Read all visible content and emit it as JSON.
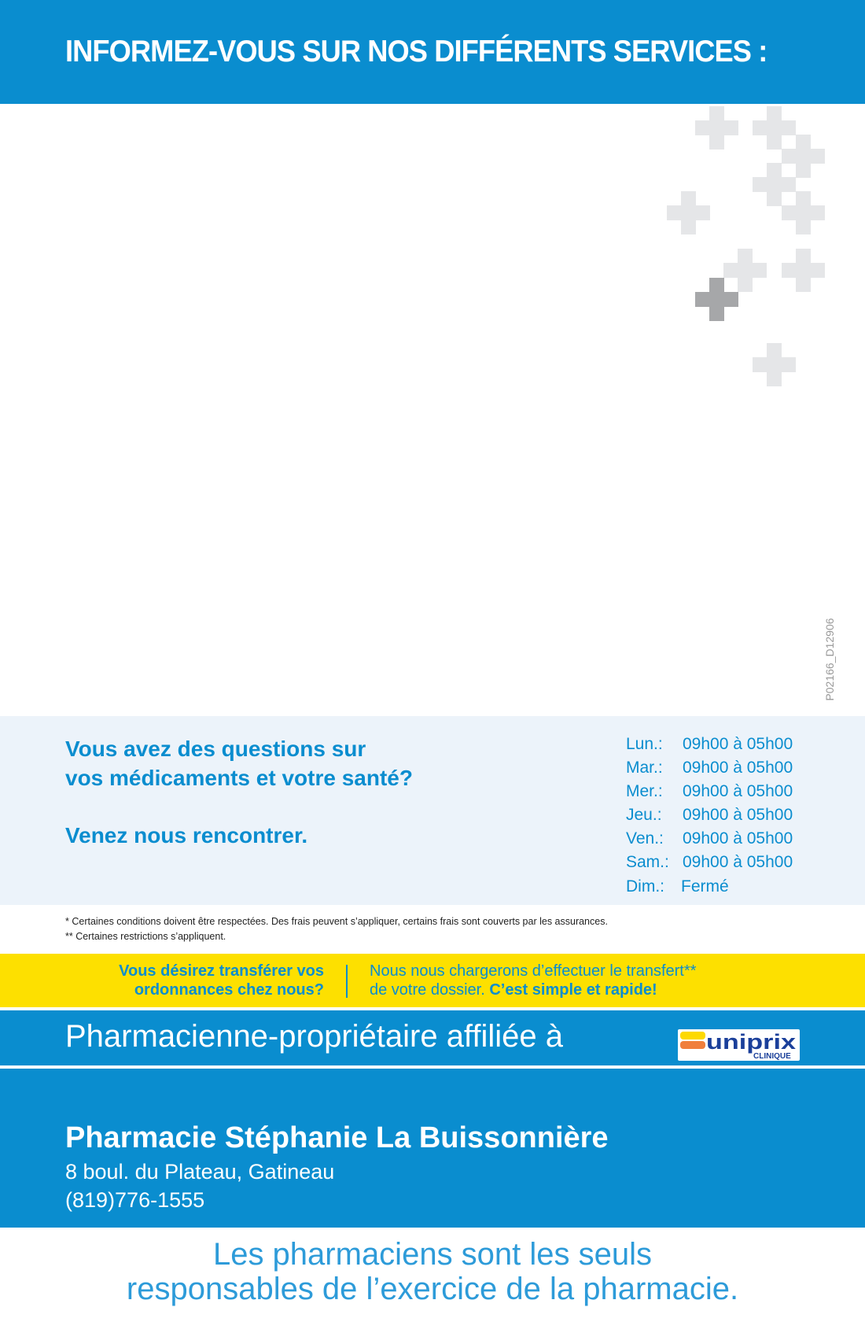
{
  "header": {
    "title": "INFORMEZ-VOUS SUR NOS DIFFÉRENTS SERVICES :"
  },
  "colors": {
    "brand_blue": "#0a8dcf",
    "yellow": "#fde000",
    "light_band": "#ecf3fa",
    "cross_light": "#e5e6e8",
    "cross_dark": "#a6a7a9"
  },
  "code": "P02166_D12906",
  "info": {
    "question_line1": "Vous avez des questions sur",
    "question_line2": "vos médicaments et votre santé?",
    "invite": "Venez nous rencontrer.",
    "hours": [
      {
        "day": "Lun.:",
        "time": "09h00 à 05h00"
      },
      {
        "day": "Mar.:",
        "time": "09h00 à 05h00"
      },
      {
        "day": "Mer.:",
        "time": "09h00 à 05h00"
      },
      {
        "day": "Jeu.:",
        "time": "09h00 à 05h00"
      },
      {
        "day": "Ven.:",
        "time": "09h00 à 05h00"
      },
      {
        "day": "Sam.:",
        "time": "09h00 à 05h00"
      },
      {
        "day": "Dim.:",
        "time": "Fermé"
      }
    ]
  },
  "notes": [
    "* Certaines conditions doivent être respectées. Des frais peuvent s’appliquer, certains frais sont couverts par les assurances.",
    "** Certaines restrictions s’appliquent."
  ],
  "transfer": {
    "left_line1": "Vous désirez transférer vos",
    "left_line2": "ordonnances chez nous?",
    "right_line1": "Nous nous chargerons d’effectuer le transfert**",
    "right_line2": "de votre dossier.",
    "right_bold": "C’est simple et rapide!"
  },
  "affiliation": {
    "text": "Pharmacienne-propriétaire affiliée à",
    "logo_text": "uniprix",
    "logo_sub": "CLINIQUE"
  },
  "store": {
    "name": "Pharmacie Stéphanie La Buissonnière",
    "address": "8 boul. du Plateau, Gatineau",
    "phone": "(819)776-1555"
  },
  "disclaimer": {
    "line1": "Les pharmaciens sont les seuls",
    "line2": "responsables de l’exercice de la pharmacie."
  }
}
